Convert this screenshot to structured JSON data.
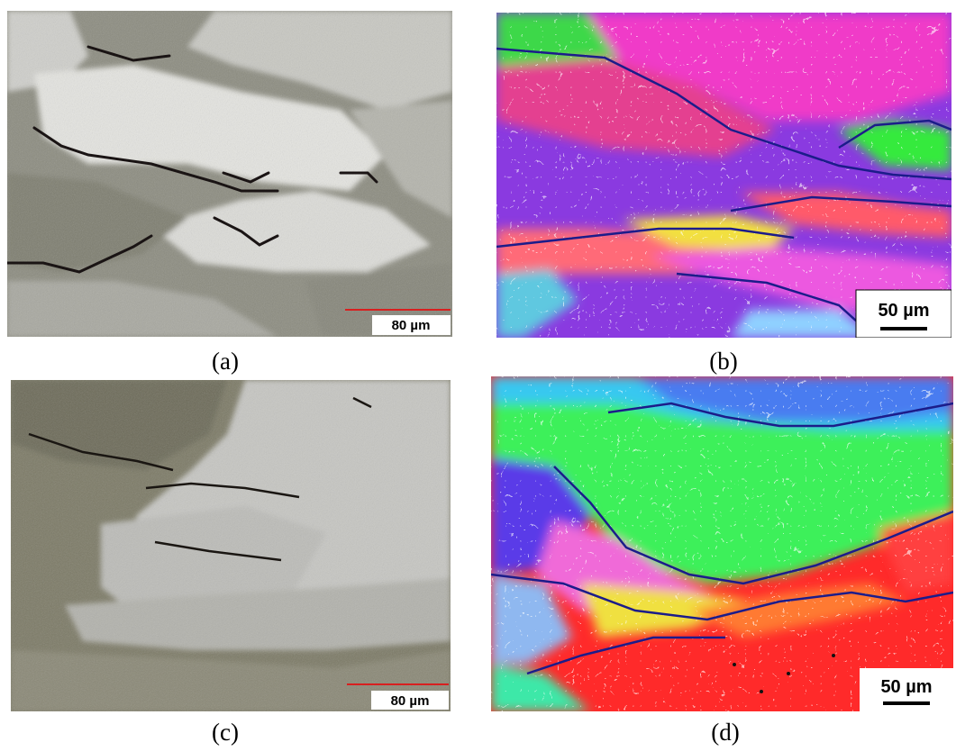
{
  "panels": [
    {
      "label": "(a)",
      "scale": "80 µm"
    },
    {
      "label": "(b)",
      "scale": "50 µm"
    },
    {
      "label": "(c)",
      "scale": "80 µm"
    },
    {
      "label": "(d)",
      "scale": "50 µm"
    }
  ]
}
